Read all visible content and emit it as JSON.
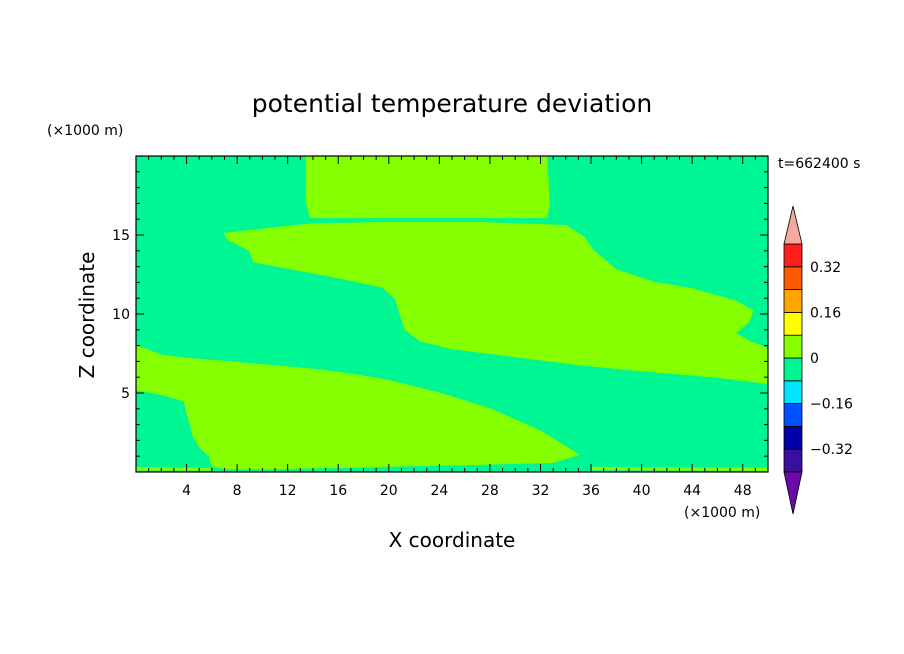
{
  "chart_data": {
    "type": "contour",
    "title": "potential temperature deviation",
    "xlabel": "X coordinate",
    "ylabel": "Z coordinate",
    "x_unit": "(×1000 m)",
    "y_unit": "(×1000 m)",
    "time_label": "t=662400 s",
    "xlim": [
      0,
      50
    ],
    "ylim": [
      0,
      20
    ],
    "x_ticks": [
      4,
      8,
      12,
      16,
      20,
      24,
      28,
      32,
      36,
      40,
      44,
      48
    ],
    "y_ticks": [
      5,
      10,
      15
    ],
    "colorbar": {
      "levels": [
        -0.4,
        -0.32,
        -0.24,
        -0.16,
        -0.08,
        0,
        0.08,
        0.16,
        0.24,
        0.32,
        0.4
      ],
      "tick_labels": [
        "0.32",
        "0.16",
        "0",
        "−0.16",
        "−0.32"
      ],
      "tick_values": [
        0.32,
        0.16,
        0,
        -0.16,
        -0.32
      ],
      "colors_bottom_to_top": [
        "#3a0fa0",
        "#0000a6",
        "#0050ff",
        "#00e5ff",
        "#00f593",
        "#85ff00",
        "#ffff00",
        "#ffa500",
        "#ff5a00",
        "#ff1e1e"
      ],
      "over_color": "#f4a9a0",
      "under_color": "#6a0aa8"
    },
    "regions": [
      {
        "value_range": [
          0,
          0.08
        ],
        "color": "#85ff00",
        "polygons": [
          [
            [
              13.5,
              20
            ],
            [
              32.5,
              20
            ],
            [
              32.7,
              17
            ],
            [
              32.5,
              16.1
            ],
            [
              13.8,
              16.1
            ],
            [
              13.5,
              17
            ]
          ],
          [
            [
              7,
              15.1
            ],
            [
              9.2,
              15.3
            ],
            [
              13.8,
              15.7
            ],
            [
              20,
              15.8
            ],
            [
              27,
              15.8
            ],
            [
              34,
              15.6
            ],
            [
              35.4,
              14.9
            ],
            [
              36.2,
              14
            ],
            [
              38,
              12.8
            ],
            [
              41,
              12
            ],
            [
              44,
              11.6
            ],
            [
              47.5,
              10.8
            ],
            [
              48.8,
              10.2
            ],
            [
              48.5,
              9.5
            ],
            [
              47.4,
              8.8
            ],
            [
              48.5,
              8.3
            ],
            [
              50,
              7.8
            ],
            [
              50,
              5.6
            ],
            [
              46,
              6
            ],
            [
              40,
              6.4
            ],
            [
              35,
              6.8
            ],
            [
              30,
              7.3
            ],
            [
              25,
              7.8
            ],
            [
              22.5,
              8.3
            ],
            [
              21.3,
              9
            ],
            [
              20.5,
              11
            ],
            [
              19.5,
              11.7
            ],
            [
              16,
              12.3
            ],
            [
              12,
              12.9
            ],
            [
              9.3,
              13.3
            ],
            [
              9,
              14
            ],
            [
              7.3,
              14.7
            ]
          ],
          [
            [
              0,
              8
            ],
            [
              2,
              7.4
            ],
            [
              4,
              7.2
            ],
            [
              7,
              7
            ],
            [
              10,
              6.8
            ],
            [
              14,
              6.5
            ],
            [
              17,
              6.2
            ],
            [
              20,
              5.8
            ],
            [
              24,
              5
            ],
            [
              28,
              4
            ],
            [
              32,
              2.6
            ],
            [
              35,
              1.1
            ],
            [
              33,
              0.6
            ],
            [
              28,
              0.5
            ],
            [
              22,
              0.4
            ],
            [
              17,
              0.3
            ],
            [
              11,
              0.2
            ],
            [
              7,
              0.2
            ],
            [
              6,
              0.4
            ],
            [
              5.8,
              1
            ],
            [
              5,
              1.6
            ],
            [
              4.5,
              2.3
            ],
            [
              4.3,
              3
            ],
            [
              4,
              3.8
            ],
            [
              3.8,
              4.5
            ],
            [
              2.5,
              4.8
            ],
            [
              1.5,
              5
            ],
            [
              0,
              5.2
            ]
          ],
          [
            [
              0,
              0.3
            ],
            [
              3,
              0.25
            ],
            [
              6,
              0.22
            ],
            [
              6,
              0.12
            ],
            [
              0,
              0.12
            ]
          ],
          [
            [
              36,
              0.3
            ],
            [
              45,
              0.25
            ],
            [
              50,
              0.25
            ],
            [
              50,
              0.1
            ],
            [
              36,
              0.15
            ]
          ]
        ]
      }
    ],
    "background_color": "#00f593"
  }
}
